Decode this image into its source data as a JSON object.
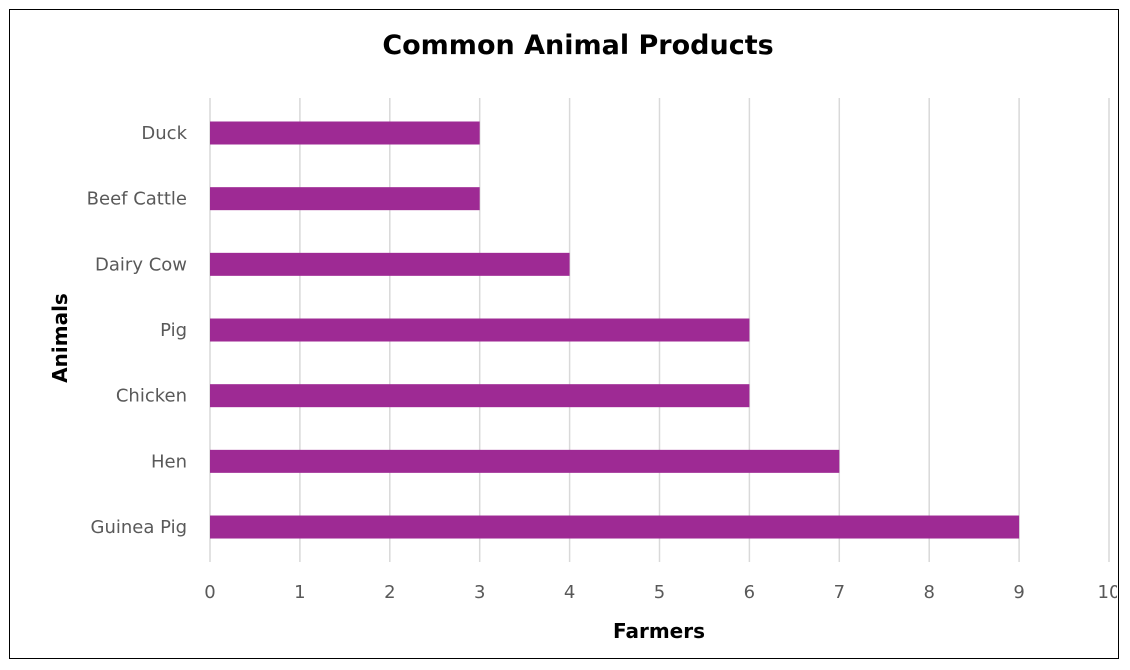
{
  "chart_data": {
    "type": "bar",
    "orientation": "horizontal",
    "title": "Common Animal Products",
    "xlabel": "Farmers",
    "ylabel": "Animals",
    "categories": [
      "Duck",
      "Beef Cattle",
      "Dairy Cow",
      "Pig",
      "Chicken",
      "Hen",
      "Guinea Pig"
    ],
    "values": [
      3,
      3,
      4,
      6,
      6,
      7,
      9
    ],
    "xlim": [
      0,
      10
    ],
    "xticks": [
      0,
      1,
      2,
      3,
      4,
      5,
      6,
      7,
      8,
      9,
      10
    ],
    "grid": "vertical",
    "legend": "none",
    "bar_color": "#9e2a94"
  }
}
